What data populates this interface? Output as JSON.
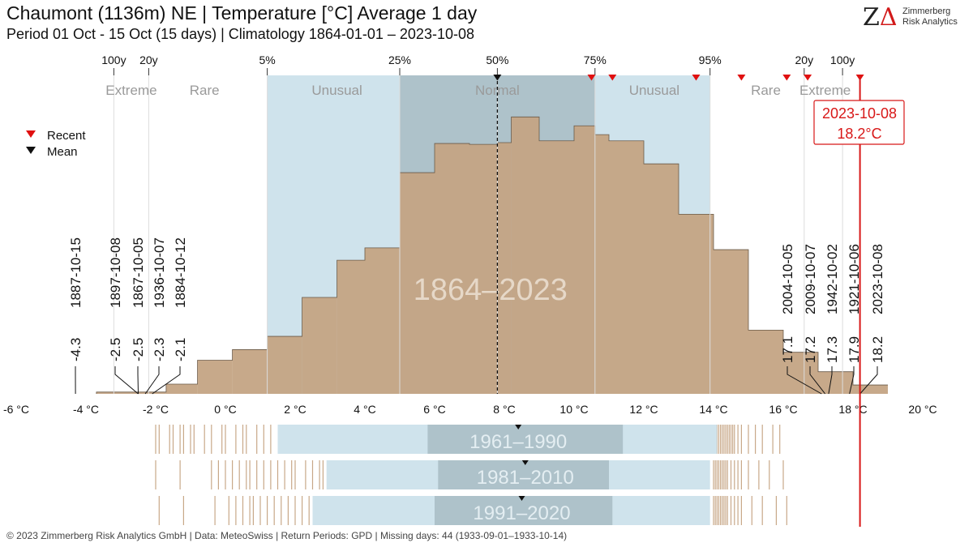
{
  "title": "Chaumont (1136m) NE | Temperature [°C] Average 1 day",
  "subtitle": "Period 01 Oct - 15 Oct (15 days) | Climatology 1864-01-01 – 2023-10-08",
  "logo": {
    "mark": "ZA",
    "line1": "Zimmerberg",
    "line2": "Risk Analytics"
  },
  "footer": "© 2023 Zimmerberg Risk Analytics GmbH | Data: MeteoSwiss | Return Periods: GPD | Missing days: 44 (1933-09-01–1933-10-14)",
  "legend": {
    "recent": "Recent",
    "mean": "Mean"
  },
  "colors": {
    "histogram": "#c4a484",
    "unusual_band": "#cfe3ec",
    "normal_band": "#aec2ca",
    "recent_marker": "#e01010",
    "mean_marker": "#111111",
    "highlight": "#d81818"
  },
  "chart_data": {
    "type": "bar",
    "title": "1864–2023",
    "xlabel": "",
    "ylabel": "",
    "x_unit": "°C",
    "xlim": [
      -6,
      20
    ],
    "x_ticks": [
      -6,
      -4,
      -2,
      0,
      2,
      4,
      6,
      8,
      10,
      12,
      14,
      16,
      18,
      20
    ],
    "x_tick_labels": [
      "-6 °C",
      "-4 °C",
      "-2 °C",
      "0 °C",
      "2 °C",
      "4 °C",
      "6 °C",
      "8 °C",
      "10 °C",
      "12 °C",
      "14 °C",
      "16 °C",
      "18 °C",
      "20 °C"
    ],
    "histogram": {
      "bin_edges": [
        -3.7,
        -2.7,
        -1.7,
        -0.8,
        0.2,
        1.2,
        2.2,
        3.2,
        4.0,
        5.0,
        6.0,
        7.0,
        7.8,
        8.2,
        9.0,
        10.0,
        10.6,
        11.0,
        12.0,
        13.0,
        14.0,
        15.0,
        16.0,
        17.0,
        18.0,
        19.0
      ],
      "values": [
        0.02,
        0.02,
        0.11,
        0.38,
        0.5,
        0.65,
        1.09,
        1.51,
        1.65,
        2.5,
        2.83,
        2.82,
        2.84,
        3.13,
        2.86,
        3.03,
        2.93,
        2.86,
        2.6,
        2.03,
        1.63,
        0.72,
        0.47,
        0.25,
        0.1,
        0.1
      ],
      "ylim": [
        0,
        3.6
      ]
    },
    "percentiles": {
      "labels": [
        "100y",
        "20y",
        "5%",
        "25%",
        "50%",
        "75%",
        "95%",
        "20y",
        "100y"
      ],
      "values": [
        -3.2,
        -2.2,
        1.2,
        5.0,
        7.8,
        10.6,
        13.9,
        16.6,
        17.7
      ]
    },
    "categories": [
      "Extreme",
      "Rare",
      "Unusual",
      "Normal",
      "Unusual",
      "Rare",
      "Extreme"
    ],
    "category_centers": [
      -2.7,
      -0.6,
      3.2,
      7.8,
      12.3,
      15.5,
      17.2
    ],
    "mean": 7.8,
    "recent_markers": [
      10.5,
      11.1,
      13.5,
      14.8,
      16.1,
      16.7,
      18.2
    ],
    "highlight": {
      "date": "2023-10-08",
      "value": 18.2,
      "label": "18.2°C"
    },
    "extremes_low": [
      {
        "date": "1887-10-15",
        "value": -4.3
      },
      {
        "date": "1897-10-08",
        "value": -2.5
      },
      {
        "date": "1867-10-05",
        "value": -2.5
      },
      {
        "date": "1936-10-07",
        "value": -2.3
      },
      {
        "date": "1884-10-12",
        "value": -2.1
      }
    ],
    "extremes_high": [
      {
        "date": "2004-10-05",
        "value": 17.1
      },
      {
        "date": "2009-10-07",
        "value": 17.2
      },
      {
        "date": "1942-10-02",
        "value": 17.3
      },
      {
        "date": "1921-10-06",
        "value": 17.9
      },
      {
        "date": "2023-10-08",
        "value": 18.2
      }
    ],
    "climatologies": [
      {
        "name": "1961–1990",
        "lo": -1.3,
        "p5": 1.5,
        "p25": 5.8,
        "p50": 8.4,
        "p75": 11.4,
        "p95": 14.1,
        "hi": 16.2
      },
      {
        "name": "1981–2010",
        "lo": -2.0,
        "p5": 2.9,
        "p25": 6.1,
        "p50": 8.6,
        "p75": 11.0,
        "p95": 13.9,
        "hi": 16.1
      },
      {
        "name": "1991–2020",
        "lo": -1.9,
        "p5": 2.5,
        "p25": 6.0,
        "p50": 8.5,
        "p75": 11.1,
        "p95": 13.9,
        "hi": 16.1
      }
    ]
  }
}
